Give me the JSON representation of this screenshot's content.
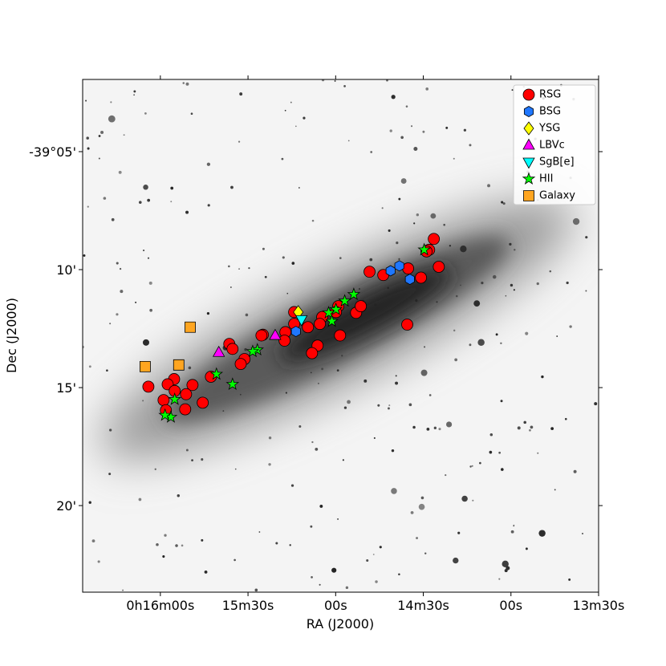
{
  "chart_data": {
    "type": "scatter",
    "xlabel": "RA (J2000)",
    "ylabel": "Dec (J2000)",
    "xlim": [
      986.6,
      810
    ],
    "ylim": [
      -23.67,
      -1.94
    ],
    "xticks": [
      {
        "value": 960,
        "label": "0h16m00s"
      },
      {
        "value": 930,
        "label": "15m30s"
      },
      {
        "value": 900,
        "label": "00s"
      },
      {
        "value": 870,
        "label": "14m30s"
      },
      {
        "value": 840,
        "label": "00s"
      },
      {
        "value": 810,
        "label": "13m30s"
      }
    ],
    "yticks": [
      {
        "value": -5,
        "label": "-39°05'"
      },
      {
        "value": -10,
        "label": "10'"
      },
      {
        "value": -15,
        "label": "15'"
      },
      {
        "value": -20,
        "label": "20'"
      }
    ],
    "legend": "upper right",
    "series": [
      {
        "name": "RSG",
        "color": "#ff0000",
        "marker": "circle",
        "x": [
          866.4,
          868.0,
          868.9,
          864.7,
          875.2,
          870.8,
          883.7,
          888.4,
          875.5,
          893.0,
          891.4,
          899.1,
          899.9,
          904.6,
          905.4,
          909.5,
          914.2,
          914.2,
          917.2,
          917.5,
          924.9,
          925.4,
          906.2,
          898.5,
          908.1,
          936.4,
          935.3,
          931.2,
          932.5,
          942.7,
          949.0,
          951.2,
          955.3,
          957.5,
          955.1,
          951.5,
          958.9,
          958.1,
          945.5,
          964.1
        ],
        "values": [
          -8.7,
          -9.16,
          -9.23,
          -9.88,
          -9.95,
          -10.34,
          -10.23,
          -10.09,
          -12.33,
          -11.83,
          -11.55,
          -11.55,
          -11.8,
          -12.01,
          -12.3,
          -12.44,
          -11.8,
          -12.3,
          -12.65,
          -13.01,
          -12.76,
          -12.79,
          -13.22,
          -12.79,
          -13.54,
          -13.15,
          -13.36,
          -13.79,
          -14.0,
          -14.54,
          -14.89,
          -15.28,
          -14.64,
          -14.86,
          -15.14,
          -15.92,
          -15.53,
          -15.96,
          -15.64,
          -14.96
        ]
      },
      {
        "name": "BSG",
        "color": "#1f77ff",
        "marker": "hexagon",
        "x": [
          881.2,
          878.2,
          874.6,
          913.6
        ],
        "values": [
          -10.05,
          -9.84,
          -10.41,
          -12.62
        ]
      },
      {
        "name": "YSG",
        "color": "#ffff00",
        "marker": "diamond",
        "x": [
          912.8
        ],
        "values": [
          -11.8
        ]
      },
      {
        "name": "LBVc",
        "color": "#ff00ff",
        "marker": "triangle-up",
        "x": [
          940.0,
          920.7
        ],
        "values": [
          -13.51,
          -12.79
        ]
      },
      {
        "name": "SgB[e]",
        "color": "#00ffff",
        "marker": "triangle-down",
        "x": [
          911.7
        ],
        "values": [
          -12.12
        ]
      },
      {
        "name": "HII",
        "color": "#00ff00",
        "marker": "star",
        "x": [
          893.8,
          896.9,
          899.9,
          902.4,
          901.3,
          926.8,
          928.4,
          935.3,
          940.8,
          955.1,
          956.4,
          958.4,
          869.7
        ],
        "values": [
          -11.05,
          -11.33,
          -11.69,
          -11.83,
          -12.19,
          -13.4,
          -13.47,
          -14.86,
          -14.43,
          -15.5,
          -16.25,
          -16.17,
          -9.16
        ]
      },
      {
        "name": "Galaxy",
        "color": "#ffa520",
        "marker": "square",
        "x": [
          949.8,
          965.2,
          953.7
        ],
        "values": [
          -12.44,
          -14.11,
          -14.04
        ]
      }
    ]
  }
}
